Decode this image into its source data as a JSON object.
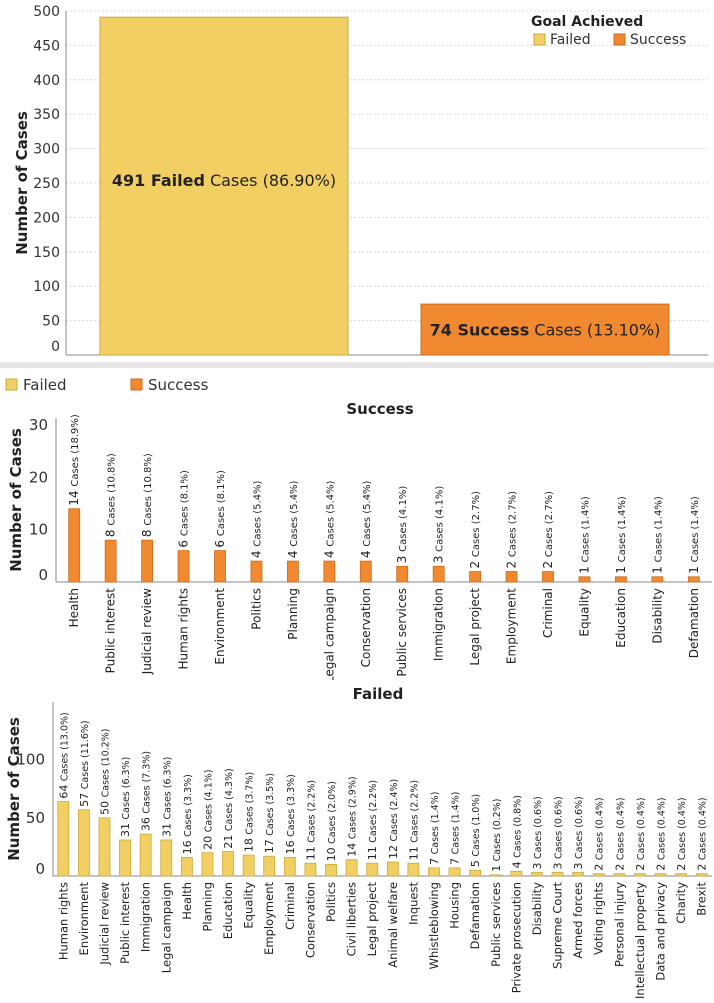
{
  "colors": {
    "failed": "#f2cf63",
    "failed_stroke": "#c9a93f",
    "success": "#f0892f",
    "success_stroke": "#c96c1f",
    "grid": "#d9d9d9",
    "axis": "#888888"
  },
  "chart_data": [
    {
      "id": "overall",
      "type": "bar",
      "ylabel": "Number of Cases",
      "ylim": [
        0,
        500
      ],
      "yticks": [
        0,
        50,
        100,
        150,
        200,
        250,
        300,
        350,
        400,
        450,
        500
      ],
      "legend_title": "Goal Achieved",
      "legend": [
        "Failed",
        "Success"
      ],
      "categories": [
        "Failed",
        "Success"
      ],
      "values": [
        491,
        74
      ],
      "labels": [
        {
          "count": "491",
          "word": "Failed",
          "rest": " Cases",
          "pct": "(86.90%)"
        },
        {
          "count": "74",
          "word": "Success",
          "rest": " Cases",
          "pct": "(13.10%)"
        }
      ]
    },
    {
      "id": "success",
      "type": "bar",
      "title": "Success",
      "ylabel": "Number of Cases",
      "ylim": [
        0,
        30
      ],
      "yticks": [
        0,
        10,
        20,
        30
      ],
      "categories": [
        "Health",
        "Public interest",
        "Judicial review",
        "Human rights",
        "Environment",
        "Politics",
        "Planning",
        "Legal campaign",
        "Conservation",
        "Public services",
        "Immigration",
        "Legal project",
        "Employment",
        "Criminal",
        "Equality",
        "Education",
        "Disability",
        "Defamation"
      ],
      "values": [
        14,
        8,
        8,
        6,
        6,
        4,
        4,
        4,
        4,
        3,
        3,
        2,
        2,
        2,
        1,
        1,
        1,
        1
      ],
      "pcts": [
        "18.9%",
        "10.8%",
        "10.8%",
        "8.1%",
        "8.1%",
        "5.4%",
        "5.4%",
        "5.4%",
        "5.4%",
        "4.1%",
        "4.1%",
        "2.7%",
        "2.7%",
        "2.7%",
        "1.4%",
        "1.4%",
        "1.4%",
        "1.4%"
      ]
    },
    {
      "id": "failed",
      "type": "bar",
      "title": "Failed",
      "ylabel": "Number of Cases",
      "ylim": [
        0,
        135
      ],
      "yticks": [
        0,
        50,
        100
      ],
      "categories": [
        "Human rights",
        "Environment",
        "Judicial review",
        "Public interest",
        "Immigration",
        "Legal campaign",
        "Health",
        "Planning",
        "Education",
        "Equality",
        "Employment",
        "Criminal",
        "Conservation",
        "Politics",
        "Civil liberties",
        "Legal project",
        "Animal welfare",
        "Inquest",
        "Whistleblowing",
        "Housing",
        "Defamation",
        "Public services",
        "Private prosecution",
        "Disability",
        "Supreme Court",
        "Armed forces",
        "Voting rights",
        "Personal injury",
        "Intellectual property",
        "Data and privacy",
        "Charity",
        "Brexit"
      ],
      "values": [
        64,
        57,
        50,
        31,
        36,
        31,
        16,
        20,
        21,
        18,
        17,
        16,
        11,
        10,
        14,
        11,
        12,
        11,
        7,
        7,
        5,
        1,
        4,
        3,
        3,
        3,
        2,
        2,
        2,
        2,
        2,
        2
      ],
      "pcts": [
        "13.0%",
        "11.6%",
        "10.2%",
        "6.3%",
        "7.3%",
        "6.3%",
        "3.3%",
        "4.1%",
        "4.3%",
        "3.7%",
        "3.5%",
        "3.3%",
        "2.2%",
        "2.0%",
        "2.9%",
        "2.2%",
        "2.4%",
        "2.2%",
        "1.4%",
        "1.4%",
        "1.0%",
        "0.2%",
        "0.8%",
        "0.6%",
        "0.6%",
        "0.6%",
        "0.4%",
        "0.4%",
        "0.4%",
        "0.4%",
        "0.4%",
        "0.4%"
      ]
    }
  ],
  "mid_legend": [
    "Failed",
    "Success"
  ],
  "label_cases_word": "Cases"
}
